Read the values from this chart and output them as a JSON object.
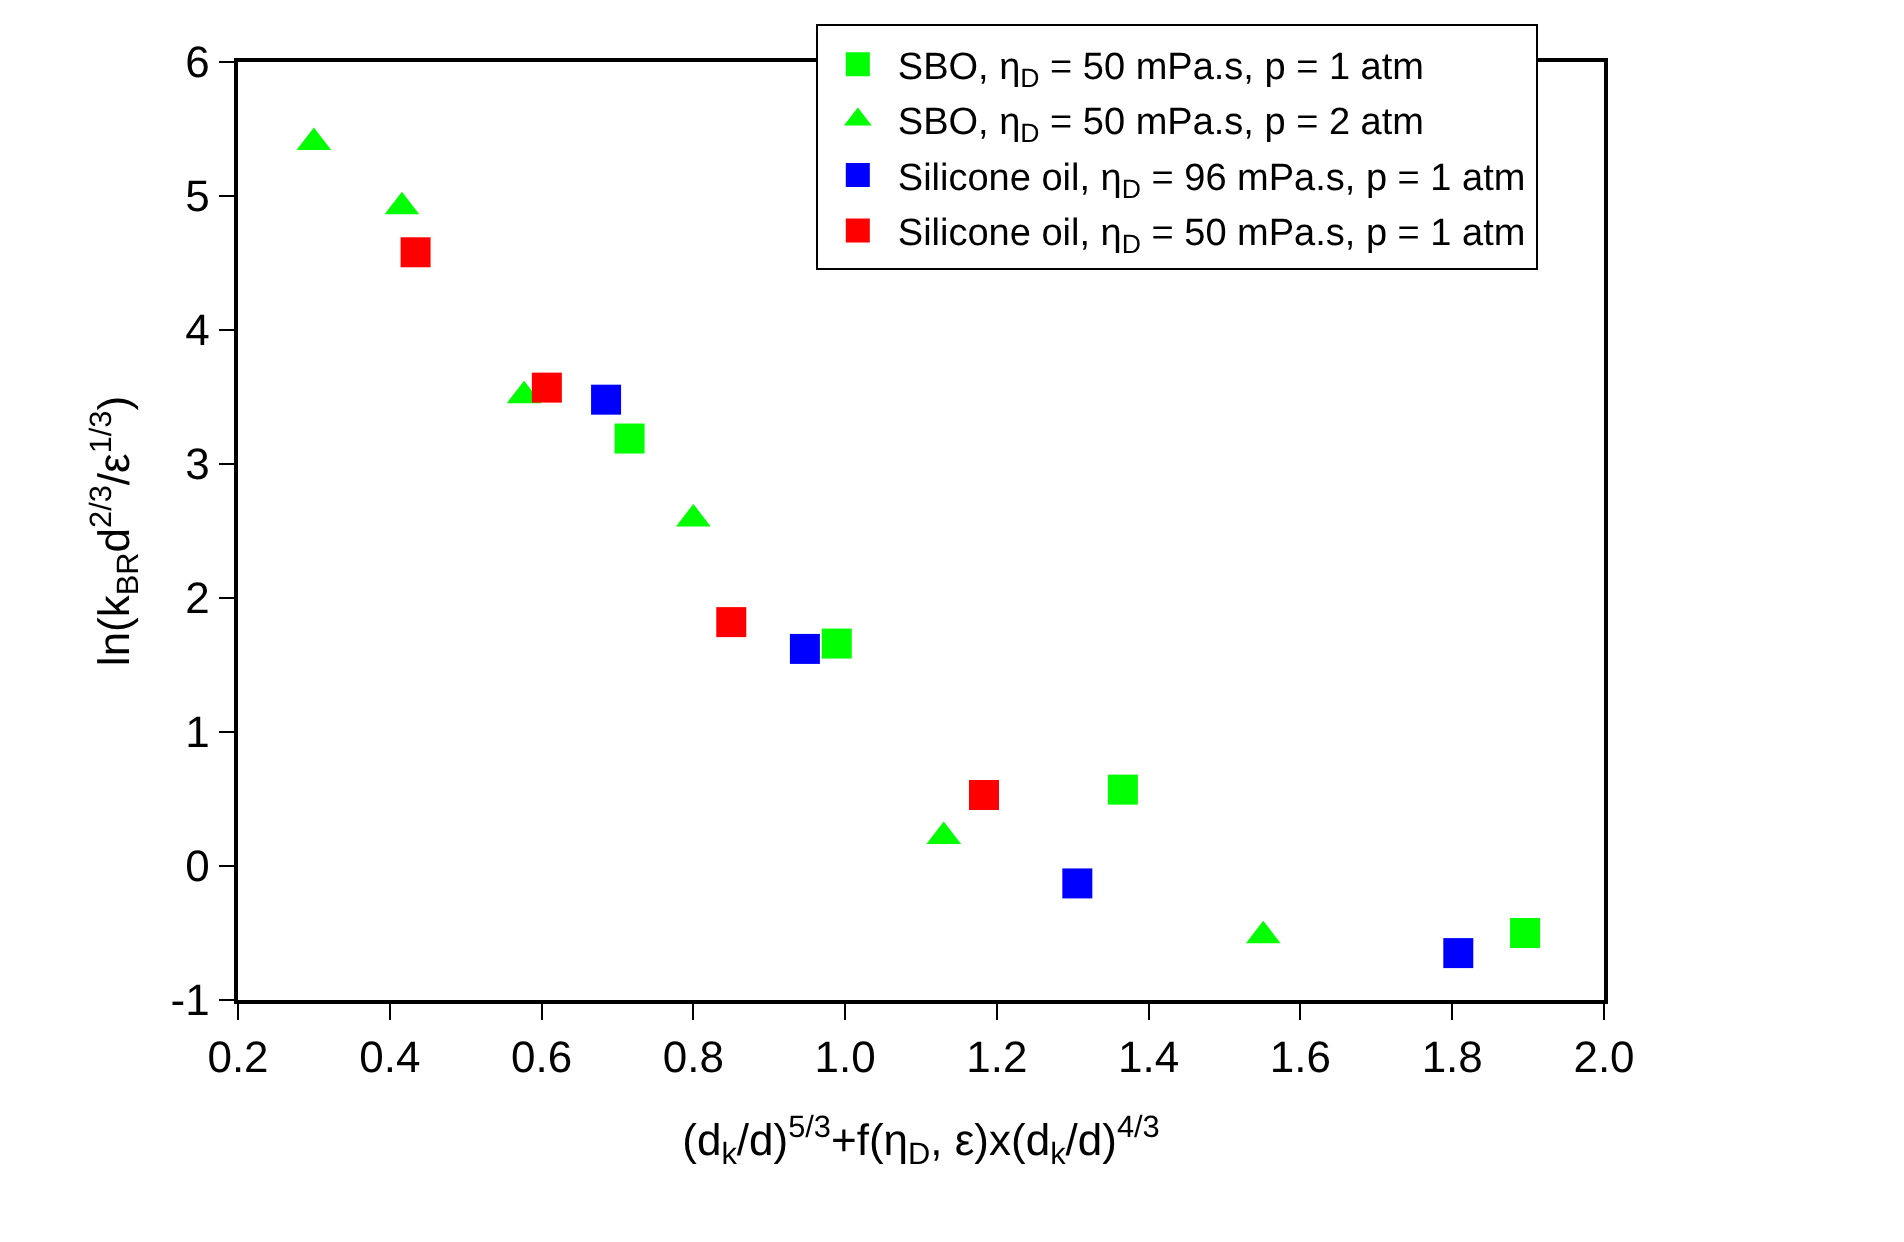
{
  "chart_data": {
    "type": "scatter",
    "xlabel": "(d$_{k}$/d)$^{5/3}$+f(η$_{D}$, ε)x(d$_{k}$/d)$^{4/3}$",
    "ylabel": "ln(k$_{BR}$d$^{2/3}$/ε$^{1/3}$)",
    "xlim": [
      0.2,
      2.0
    ],
    "ylim": [
      -1,
      6
    ],
    "xticks": [
      0.2,
      0.4,
      0.6,
      0.8,
      {
        "value": 1.0,
        "label": "1.0"
      },
      1.2,
      1.4,
      1.6,
      1.8,
      {
        "value": 2.0,
        "label": "2.0"
      }
    ],
    "yticks": [
      -1,
      0,
      1,
      2,
      3,
      4,
      5,
      6
    ],
    "legend": "top right",
    "series": [
      {
        "name": "SBO, η$_{D}$ = 50 mPa.s, p = 1 atm",
        "color": "#00ff00",
        "marker": "square",
        "x": [
          0.716,
          0.989,
          1.366,
          1.896
        ],
        "values": [
          3.19,
          1.66,
          0.57,
          -0.5
        ]
      },
      {
        "name": "SBO, η$_{D}$ = 50 mPa.s, p = 2 atm",
        "color": "#00ff00",
        "marker": "triangle",
        "x": [
          0.3,
          0.416,
          0.577,
          0.8,
          1.13,
          1.551
        ],
        "values": [
          5.4,
          4.92,
          3.51,
          2.59,
          0.22,
          -0.52
        ]
      },
      {
        "name": "Silicone oil, η$_{D}$ = 96 mPa.s, p = 1 atm",
        "color": "#0000ff",
        "marker": "square",
        "x": [
          0.685,
          0.947,
          1.306,
          1.808
        ],
        "values": [
          3.48,
          1.62,
          -0.13,
          -0.65
        ]
      },
      {
        "name": "Silicone oil, η$_{D}$ = 50 mPa.s, p = 1 atm",
        "color": "#ff0000",
        "marker": "square",
        "x": [
          0.434,
          0.607,
          0.85,
          1.183
        ],
        "values": [
          4.58,
          3.57,
          1.82,
          0.53
        ]
      }
    ]
  }
}
